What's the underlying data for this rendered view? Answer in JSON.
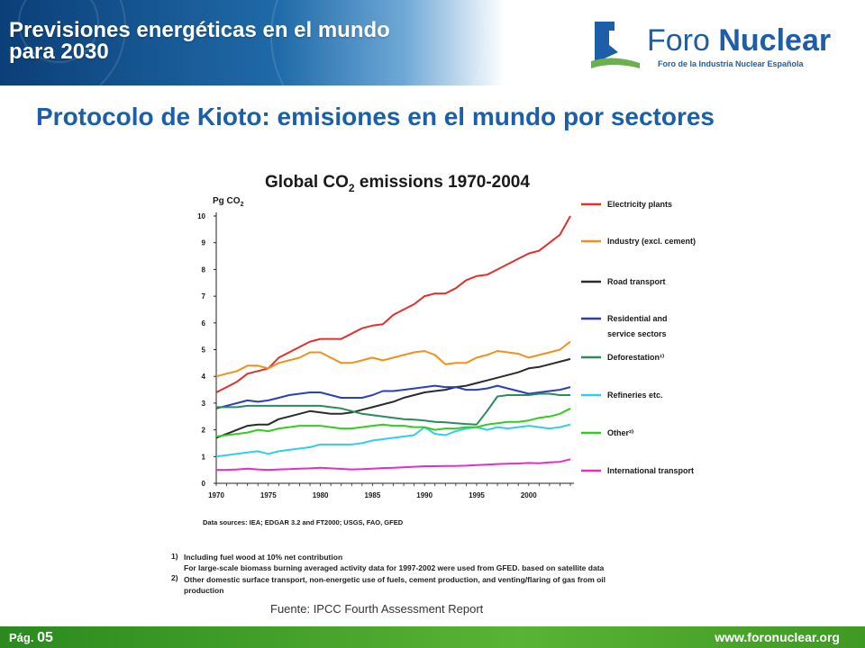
{
  "header": {
    "title_line1": "Previsiones energéticas en el mundo",
    "title_line2": "para 2030",
    "logo_word1": "Foro ",
    "logo_word2": "Nuclear",
    "logo_tagline": "Foro de la Industria Nuclear Española",
    "logo_icon": "foro-nuclear-logo-icon"
  },
  "slide_title": "Protocolo de Kioto: emisiones en el mundo por sectores",
  "chart_data": {
    "type": "line",
    "title": "Global CO2 emissions 1970-2004",
    "ylabel": "Pg CO2",
    "ylim": [
      0,
      10
    ],
    "xlim": [
      1970,
      2004
    ],
    "x_ticks": [
      "1970",
      "1975",
      "1980",
      "1985",
      "1990",
      "1995",
      "2000"
    ],
    "y_ticks": [
      "0",
      "1",
      "2",
      "3",
      "4",
      "5",
      "6",
      "7",
      "8",
      "9",
      "10"
    ],
    "grid": false,
    "legend_position": "right",
    "x": [
      1970,
      1971,
      1972,
      1973,
      1974,
      1975,
      1976,
      1977,
      1978,
      1979,
      1980,
      1981,
      1982,
      1983,
      1984,
      1985,
      1986,
      1987,
      1988,
      1989,
      1990,
      1991,
      1992,
      1993,
      1994,
      1995,
      1996,
      1997,
      1998,
      1999,
      2000,
      2001,
      2002,
      2003,
      2004
    ],
    "series": [
      {
        "name": "Electricity plants",
        "color": "#e03030",
        "values": [
          3.4,
          3.6,
          3.8,
          4.1,
          4.2,
          4.3,
          4.7,
          4.9,
          5.1,
          5.3,
          5.4,
          5.4,
          5.4,
          5.6,
          5.8,
          5.9,
          5.95,
          6.3,
          6.5,
          6.7,
          7.0,
          7.1,
          7.1,
          7.3,
          7.6,
          7.75,
          7.8,
          8.0,
          8.2,
          8.4,
          8.6,
          8.7,
          9.0,
          9.3,
          10.0
        ]
      },
      {
        "name": "Industry (excl. cement)",
        "color": "#f0901e",
        "values": [
          4.0,
          4.1,
          4.2,
          4.4,
          4.4,
          4.3,
          4.5,
          4.6,
          4.7,
          4.9,
          4.9,
          4.7,
          4.5,
          4.5,
          4.6,
          4.7,
          4.6,
          4.7,
          4.8,
          4.9,
          4.95,
          4.8,
          4.45,
          4.5,
          4.5,
          4.7,
          4.8,
          4.95,
          4.9,
          4.85,
          4.7,
          4.8,
          4.9,
          5.0,
          5.3
        ]
      },
      {
        "name": "Road transport",
        "color": "#2b2b2b",
        "values": [
          1.7,
          1.85,
          2.0,
          2.15,
          2.2,
          2.2,
          2.4,
          2.5,
          2.6,
          2.7,
          2.65,
          2.6,
          2.6,
          2.65,
          2.75,
          2.85,
          2.95,
          3.05,
          3.2,
          3.3,
          3.4,
          3.45,
          3.5,
          3.6,
          3.65,
          3.75,
          3.85,
          3.95,
          4.05,
          4.15,
          4.3,
          4.35,
          4.45,
          4.55,
          4.65
        ]
      },
      {
        "name": "Residential and service sectors",
        "color": "#2a3fbf",
        "values": [
          2.8,
          2.9,
          3.0,
          3.1,
          3.05,
          3.1,
          3.2,
          3.3,
          3.35,
          3.4,
          3.4,
          3.3,
          3.2,
          3.2,
          3.2,
          3.3,
          3.45,
          3.45,
          3.5,
          3.55,
          3.6,
          3.65,
          3.6,
          3.6,
          3.5,
          3.5,
          3.55,
          3.65,
          3.55,
          3.45,
          3.35,
          3.4,
          3.45,
          3.5,
          3.6
        ]
      },
      {
        "name": "Deforestation",
        "color": "#2e8a5a",
        "values": [
          2.85,
          2.85,
          2.85,
          2.9,
          2.9,
          2.9,
          2.9,
          2.9,
          2.9,
          2.9,
          2.9,
          2.85,
          2.8,
          2.7,
          2.6,
          2.55,
          2.5,
          2.45,
          2.4,
          2.38,
          2.35,
          2.3,
          2.28,
          2.25,
          2.22,
          2.2,
          2.7,
          3.25,
          3.3,
          3.3,
          3.3,
          3.35,
          3.35,
          3.3,
          3.3
        ]
      },
      {
        "name": "Refineries etc.",
        "color": "#33ccee",
        "values": [
          1.0,
          1.05,
          1.1,
          1.15,
          1.2,
          1.1,
          1.2,
          1.25,
          1.3,
          1.35,
          1.45,
          1.45,
          1.45,
          1.45,
          1.5,
          1.6,
          1.65,
          1.7,
          1.75,
          1.8,
          2.1,
          1.85,
          1.8,
          1.95,
          2.05,
          2.1,
          2.0,
          2.1,
          2.05,
          2.1,
          2.15,
          2.1,
          2.05,
          2.1,
          2.2
        ]
      },
      {
        "name": "Other",
        "color": "#33cc22",
        "values": [
          1.75,
          1.8,
          1.85,
          1.9,
          2.0,
          1.95,
          2.05,
          2.1,
          2.15,
          2.15,
          2.15,
          2.1,
          2.05,
          2.05,
          2.1,
          2.15,
          2.2,
          2.15,
          2.15,
          2.1,
          2.1,
          2.0,
          2.05,
          2.05,
          2.1,
          2.1,
          2.2,
          2.25,
          2.3,
          2.3,
          2.35,
          2.45,
          2.5,
          2.6,
          2.8
        ]
      },
      {
        "name": "International transport",
        "color": "#e030c8",
        "values": [
          0.5,
          0.5,
          0.52,
          0.55,
          0.52,
          0.5,
          0.52,
          0.53,
          0.55,
          0.56,
          0.58,
          0.56,
          0.54,
          0.52,
          0.53,
          0.55,
          0.57,
          0.58,
          0.6,
          0.62,
          0.64,
          0.64,
          0.65,
          0.65,
          0.66,
          0.68,
          0.7,
          0.72,
          0.73,
          0.74,
          0.76,
          0.75,
          0.78,
          0.8,
          0.9
        ]
      }
    ],
    "legend_labels": [
      [
        "Electricity plants"
      ],
      [
        "Industry (excl. cement)"
      ],
      [
        "Road transport"
      ],
      [
        "Residential and",
        "service sectors"
      ],
      [
        "Deforestation¹⁾"
      ],
      [
        "Refineries etc."
      ],
      [
        "Other²⁾"
      ],
      [
        "International transport"
      ]
    ],
    "data_sources": "Data sources: IEA; EDGAR 3.2 and FT2000; USGS, FAO, GFED"
  },
  "notes": {
    "n1_marker": "1)",
    "n1_line1": "Including fuel wood at 10% net contribution",
    "n1_line2": "For large-scale biomass burning averaged activity data for 1997-2002 were used from GFED. based on satellite data",
    "n2_marker": "2)",
    "n2_line1": "Other domestic surface transport, non-energetic use of fuels, cement production, and venting/flaring of gas from oil",
    "n2_line2": "production"
  },
  "source": "Fuente: IPCC Fourth Assessment Report",
  "footer": {
    "page_prefix": "Pág. ",
    "page_number": "05",
    "website": "www.foronuclear.org"
  },
  "colors": {
    "title_blue": "#1a5fa8",
    "header_blue": "#0b3f78",
    "footer_green": "#59b334"
  }
}
